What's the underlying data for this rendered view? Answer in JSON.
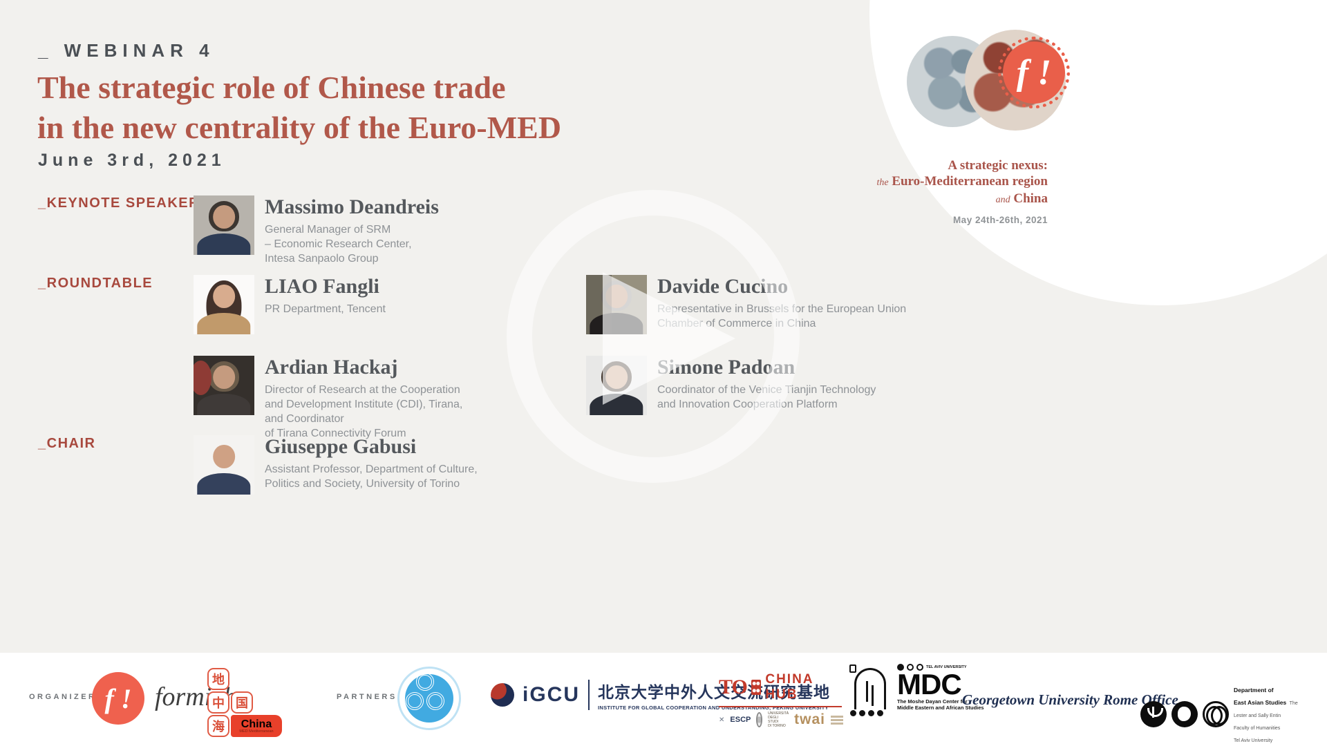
{
  "colors": {
    "background": "#f2f1ee",
    "title_red": "#b1584a",
    "label_red": "#a8493e",
    "ink_dark": "#4b5055",
    "bio_gray": "#8e9296",
    "coral": "#ee614c",
    "footer_white": "#ffffff"
  },
  "header": {
    "kicker": "_ WEBINAR 4",
    "title_line1": "The strategic role of Chinese trade",
    "title_line2": "in the new centrality of the Euro-MED",
    "date": "June 3rd, 2021"
  },
  "badge": {
    "mark": "f !",
    "tagline_line1": "A strategic nexus:",
    "tagline2_prefix": "the",
    "tagline2_main": "Euro-Mediterranean region",
    "tagline3_prefix": "and",
    "tagline3_main": "China",
    "dates": "May 24th-26th, 2021"
  },
  "labels": {
    "keynote": "_KEYNOTE SPEAKER",
    "roundtable": "_ROUNDTABLE",
    "chair": "_CHAIR"
  },
  "speakers": [
    {
      "name": "Massimo Deandreis",
      "bio": "General Manager of SRM\n– Economic Research Center,\nIntesa Sanpaolo Group"
    },
    {
      "name": "LIAO Fangli",
      "bio": "PR Department, Tencent"
    },
    {
      "name": "Davide Cucino",
      "bio": "Representative in Brussels for the European Union\nChamber of Commerce in China"
    },
    {
      "name": "Ardian Hackaj",
      "bio": "Director of Research at the Cooperation\nand Development Institute (CDI), Tirana,\nand Coordinator\nof Tirana Connectivity Forum"
    },
    {
      "name": "Simone Padoan",
      "bio": "Coordinator of the Venice Tianjin Technology\nand Innovation Cooperation Platform"
    },
    {
      "name": "Giuseppe Gabusi",
      "bio": "Assistant Professor, Department of Culture,\nPolitics and Society, University of Torino"
    }
  ],
  "footer": {
    "organizers_label": "ORGANIZERS",
    "partners_label": "PARTNERS",
    "formiche": {
      "mark": "f !",
      "wordmark": "formiche"
    },
    "chinamed": {
      "tile1": "地",
      "tile2": "中",
      "tile3": "国",
      "tile4": "海",
      "badge": "China",
      "badge_sub": "MED Mediterranean"
    },
    "igcu": {
      "acronym": "iGCU",
      "chinese": "北京大学中外人文交流研究基地",
      "caption": "INSTITUTE FOR GLOBAL COOPERATION AND UNDERSTANDING, PEKING UNIVERSITY"
    },
    "tochina": {
      "to": "TO",
      "name": "CHINA HUB",
      "escp_mark": "✕",
      "escp": "ESCP",
      "unito": "UNIVERSITÀ\nDEGLI STUDI\nDI TORINO",
      "twai": "twai"
    },
    "mdc": {
      "university": "TEL AVIV UNIVERSITY",
      "acronym": "MDC",
      "caption": "The Moshe Dayan Center for\nMiddle Eastern and African Studies"
    },
    "georgetown": "Georgetown University Rome Office",
    "tau": {
      "dept": "Department of\nEast Asian Studies",
      "sub": "The Lester and Sally Entin\nFaculty of Humanities\nTel Aviv University"
    }
  }
}
